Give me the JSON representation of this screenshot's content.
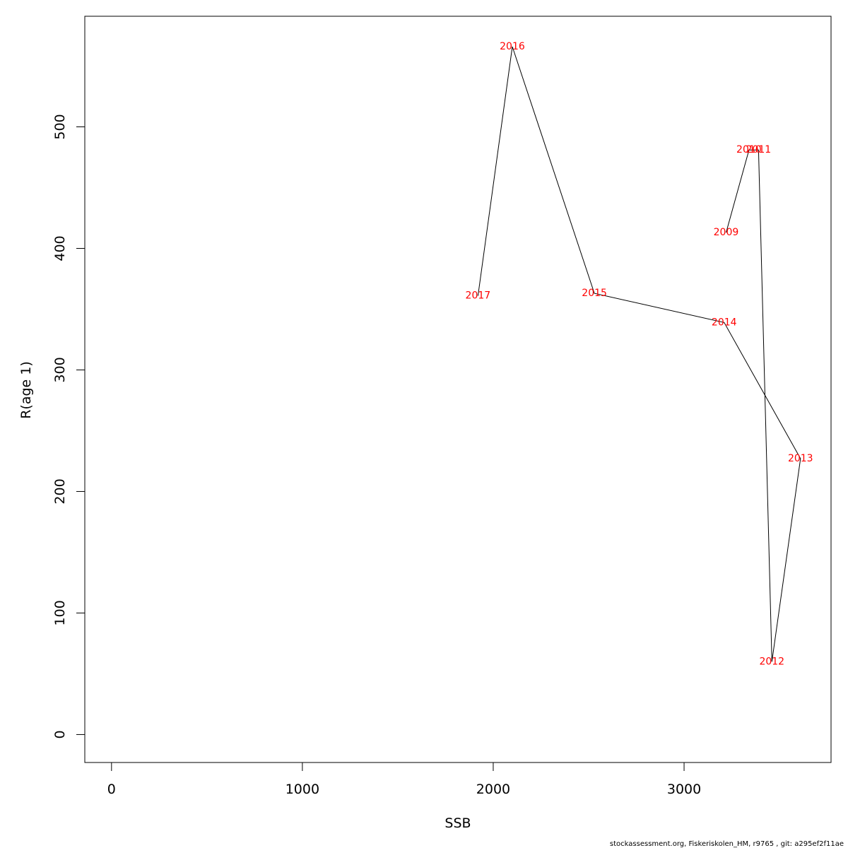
{
  "chart_data": {
    "type": "line",
    "title": "",
    "xlabel": "SSB",
    "ylabel": "R(age 1)",
    "xlim": [
      -140,
      3770
    ],
    "ylim": [
      -23,
      591
    ],
    "x_ticks": [
      0,
      1000,
      2000,
      3000
    ],
    "y_ticks": [
      0,
      100,
      200,
      300,
      400,
      500
    ],
    "grid": false,
    "label_color": "#ff0000",
    "line_color": "#000000",
    "points": [
      {
        "label": "2009",
        "x": 3220,
        "y": 413
      },
      {
        "label": "2010",
        "x": 3340,
        "y": 481
      },
      {
        "label": "2011",
        "x": 3390,
        "y": 481
      },
      {
        "label": "2012",
        "x": 3460,
        "y": 60
      },
      {
        "label": "2013",
        "x": 3610,
        "y": 227
      },
      {
        "label": "2014",
        "x": 3210,
        "y": 339
      },
      {
        "label": "2015",
        "x": 2530,
        "y": 363
      },
      {
        "label": "2016",
        "x": 2100,
        "y": 566
      },
      {
        "label": "2017",
        "x": 1920,
        "y": 361
      }
    ]
  },
  "footer": "stockassessment.org, Fiskeriskolen_HM, r9765 , git: a295ef2f11ae"
}
